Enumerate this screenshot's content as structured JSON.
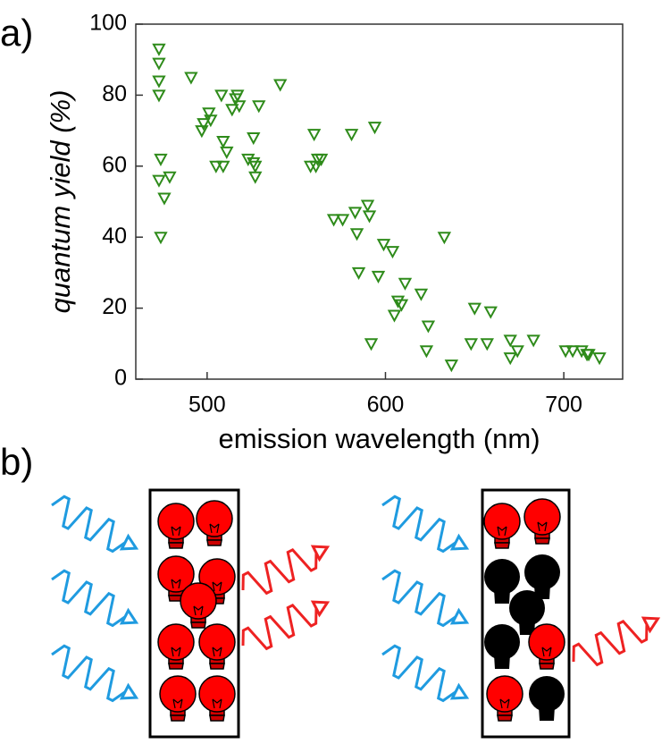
{
  "panel_labels": {
    "a": "a)",
    "b": "b)"
  },
  "chart_data": {
    "type": "scatter",
    "xlabel": "emission wavelength (nm)",
    "ylabel": "quantum yield (%)",
    "xlim": [
      460,
      733
    ],
    "ylim": [
      0,
      100
    ],
    "xticks": [
      500,
      600,
      700
    ],
    "yticks": [
      0,
      20,
      40,
      60,
      80,
      100
    ],
    "marker_color": "#2e8b1a",
    "x": [
      473,
      473,
      473,
      473,
      474,
      473,
      476,
      479,
      474,
      491,
      501,
      502,
      497,
      498,
      508,
      509,
      511,
      505,
      509,
      514,
      516,
      517,
      518,
      523,
      526,
      527,
      527,
      526,
      529,
      541,
      560,
      562,
      561,
      564,
      558,
      581,
      594,
      571,
      576,
      583,
      584,
      590,
      591,
      585,
      596,
      599,
      604,
      611,
      607,
      605,
      609,
      620,
      624,
      623,
      633,
      637,
      592,
      650,
      659,
      648,
      657,
      670,
      674,
      670,
      683,
      701,
      705,
      710,
      714,
      713,
      720
    ],
    "y": [
      93,
      89,
      84,
      80,
      62,
      56,
      51,
      57,
      40,
      85,
      75,
      73,
      70,
      72,
      80,
      67,
      64,
      60,
      60,
      76,
      79,
      80,
      77,
      62,
      61,
      60,
      57,
      68,
      77,
      83,
      69,
      62,
      60,
      62,
      60,
      69,
      71,
      45,
      45,
      47,
      41,
      49,
      46,
      30,
      29,
      38,
      36,
      27,
      22,
      18,
      21,
      24,
      15,
      8,
      40,
      4,
      10,
      20,
      19,
      10,
      10,
      11,
      8,
      6,
      11,
      8,
      8,
      8,
      7,
      7,
      6
    ]
  }
}
